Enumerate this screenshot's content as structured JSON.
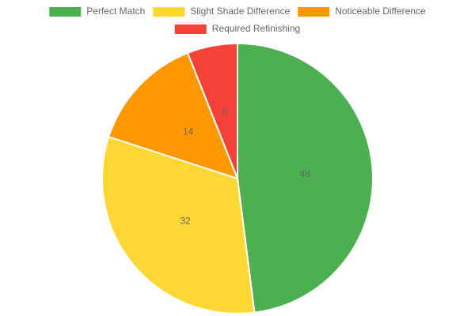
{
  "chart_data": {
    "type": "pie",
    "categories": [
      "Perfect Match",
      "Slight Shade Difference",
      "Noticeable Difference",
      "Required Refinishing"
    ],
    "values": [
      48,
      32,
      14,
      6
    ],
    "colors": [
      "#4caf50",
      "#fdd835",
      "#ff9800",
      "#f44336"
    ],
    "legend": "top"
  }
}
